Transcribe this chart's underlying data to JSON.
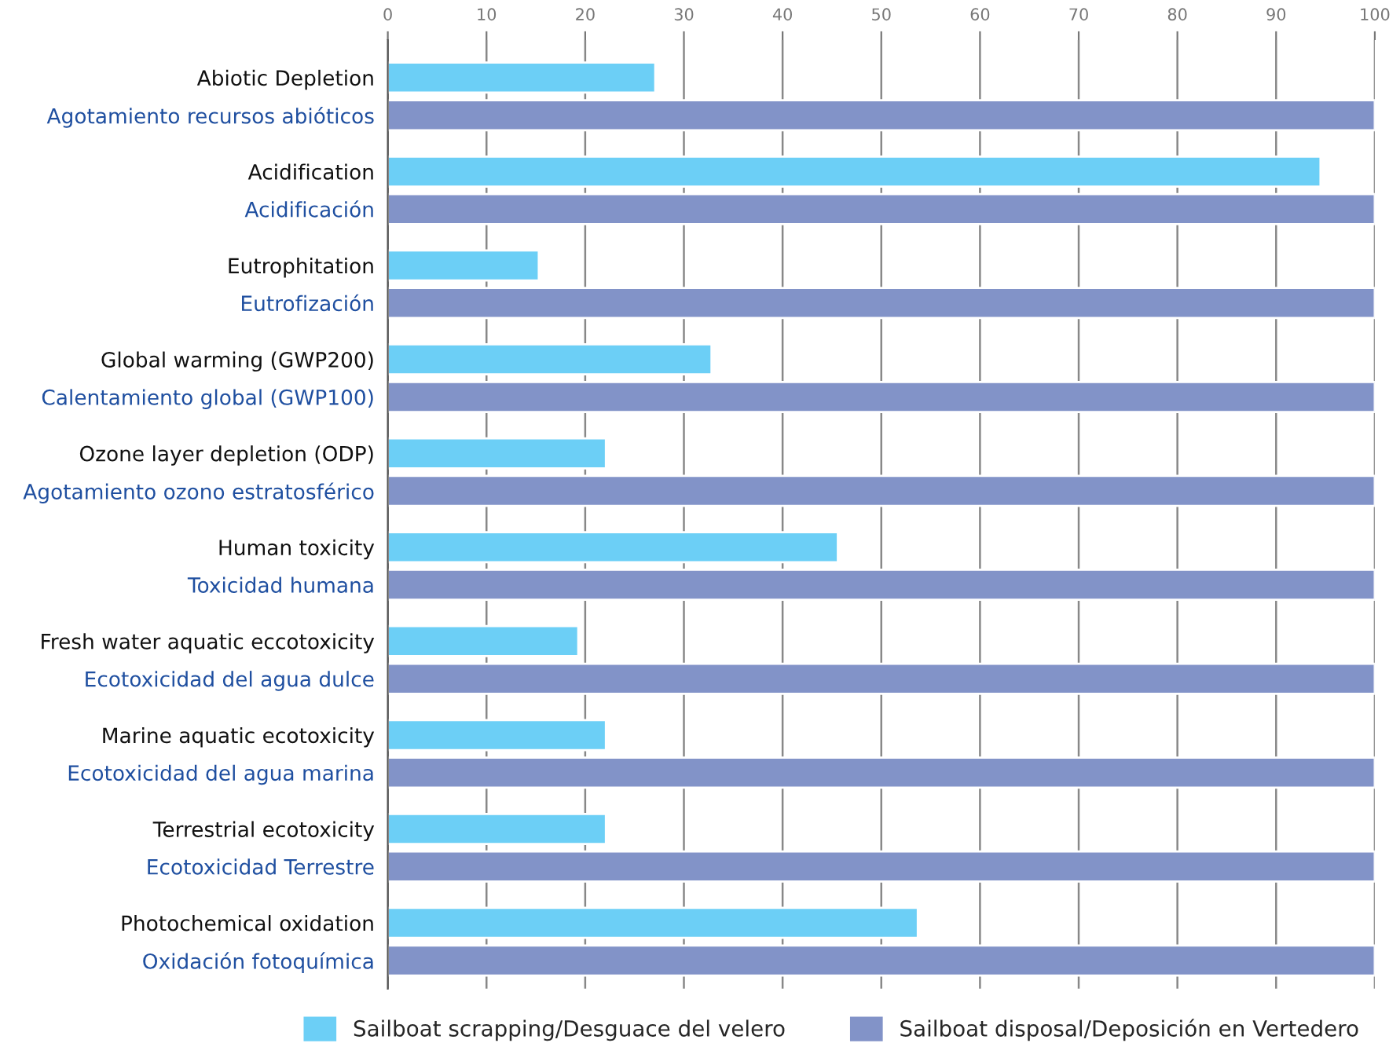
{
  "chart_data": {
    "type": "bar",
    "orientation": "horizontal",
    "categories": [
      "Abiotic Depletion\nAgotamiento recursos abióticos",
      "Acidification\nAcidificación",
      "Eutrophitation\nEutrofización",
      "Global warming (GWP200)\nCalentamiento global (GWP100)",
      "Ozone layer depletion (ODP)\nAgotamiento ozono estratosférico",
      "Human toxicity\nToxicidad humana",
      "Fresh water aquatic eccotoxicity\nEcotoxicidad del agua dulce",
      "Marine aquatic ecotoxicity\nEcotoxicidad del agua marina",
      "Terrestrial ecotoxicity\nEcotoxicidad Terrestre",
      "Photochemical oxidation\nOxidación fotoquímica"
    ],
    "series": [
      {
        "name": "Sailboat scrapping/Desguace del velero",
        "color": "#6ccff6",
        "values": [
          27.1,
          94.5,
          15.3,
          32.8,
          22.1,
          45.6,
          19.3,
          22.1,
          22.1,
          53.7
        ]
      },
      {
        "name": "Sailboat disposal/Deposición en Vertedero",
        "color": "#8293c8",
        "values": [
          100,
          100,
          100,
          100,
          100,
          100,
          100,
          100,
          100,
          100
        ]
      }
    ],
    "xlim": [
      0,
      100
    ],
    "xticks": [
      0,
      10,
      20,
      30,
      40,
      50,
      60,
      70,
      80,
      90,
      100
    ],
    "grid": "x",
    "legend": "bottom"
  }
}
